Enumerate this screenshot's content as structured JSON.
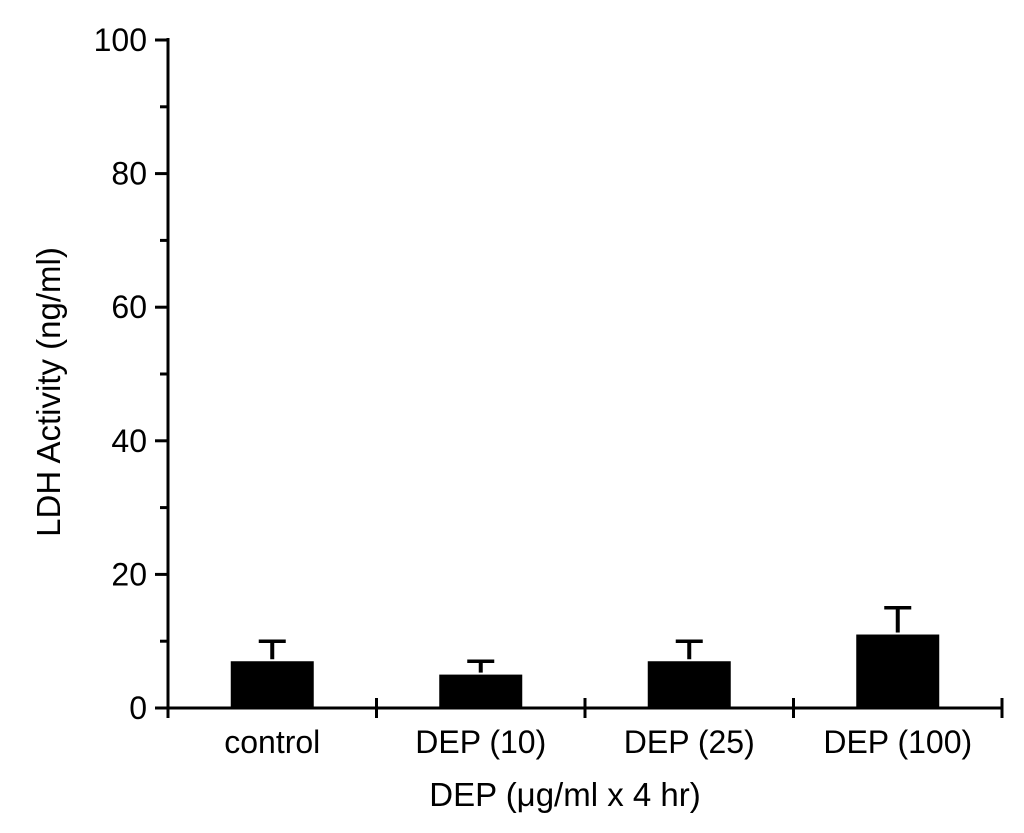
{
  "figure": {
    "background_color": "#ffffff",
    "ink_color": "#000000"
  },
  "chart_data": {
    "type": "bar",
    "title": "",
    "categories": [
      "control",
      "DEP (10)",
      "DEP (25)",
      "DEP (100)"
    ],
    "values": [
      7,
      5,
      7,
      11
    ],
    "error_up": [
      3,
      2,
      3,
      4
    ],
    "xlabel": "DEP (μg/ml x 4 hr)",
    "ylabel": "LDH Activity (ng/ml)",
    "ylim": [
      0,
      100
    ],
    "y_major_ticks": [
      0,
      20,
      40,
      60,
      80,
      100
    ],
    "y_minor_ticks": [
      10,
      30,
      50,
      70,
      90
    ],
    "bar_color": "#000000",
    "grid": false,
    "legend": "none",
    "error_bars": "upper-only-with-caps"
  }
}
